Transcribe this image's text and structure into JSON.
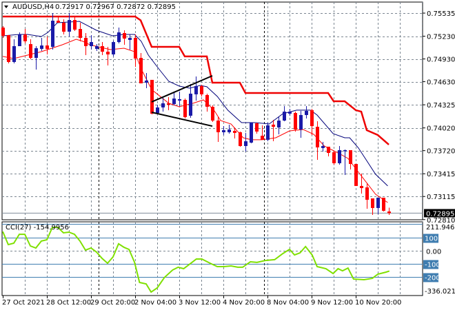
{
  "header": {
    "symbol": "AUDUSD,H4",
    "open": "0.72917",
    "high": "0.72967",
    "low": "0.72872",
    "close": "0.72895"
  },
  "colors": {
    "bull": "#1a1aa8",
    "bear": "#ff0000",
    "ma_blue": "#00007a",
    "envelope_red": "#ff0000",
    "stop_line": "#ee0000",
    "cci": "#7fe000",
    "level": "#3f7db0",
    "grid": "#7a8590"
  },
  "chart_data": [
    {
      "type": "candlestick",
      "title": "AUDUSD,H4",
      "ylim": [
        0.7276,
        0.7564
      ],
      "price_ticks": [
        "0.75535",
        "0.75230",
        "0.74930",
        "0.74630",
        "0.74325",
        "0.74020",
        "0.73720",
        "0.73415",
        "0.73115",
        "0.72810"
      ],
      "current_price": "0.72895",
      "x_tick_labels": [
        {
          "bar": 0,
          "label": "27 Oct 2021"
        },
        {
          "bar": 8,
          "label": "28 Oct 12:00"
        },
        {
          "bar": 16,
          "label": "29 Oct 20:00"
        },
        {
          "bar": 24,
          "label": "2 Nov 04:00"
        },
        {
          "bar": 32,
          "label": "3 Nov 12:00"
        },
        {
          "bar": 40,
          "label": "4 Nov 20:00"
        },
        {
          "bar": 48,
          "label": "8 Nov 04:00"
        },
        {
          "bar": 56,
          "label": "9 Nov 12:00"
        },
        {
          "bar": 64,
          "label": "10 Nov 20:00"
        }
      ],
      "separators": [
        17,
        47
      ],
      "candles_ohlc": [
        [
          0.75344,
          0.75363,
          0.75208,
          0.75235
        ],
        [
          0.75244,
          0.75244,
          0.74872,
          0.7489
        ],
        [
          0.7489,
          0.7519,
          0.74872,
          0.75099
        ],
        [
          0.75099,
          0.75281,
          0.75099,
          0.75253
        ],
        [
          0.75253,
          0.75326,
          0.75135,
          0.75163
        ],
        [
          0.75126,
          0.7519,
          0.74926,
          0.74944
        ],
        [
          0.74944,
          0.75099,
          0.7479,
          0.75072
        ],
        [
          0.75063,
          0.75208,
          0.75035,
          0.75108
        ],
        [
          0.75108,
          0.75226,
          0.7499,
          0.75063
        ],
        [
          0.7509,
          0.75535,
          0.75053,
          0.75435
        ],
        [
          0.75435,
          0.75481,
          0.75408,
          0.75408
        ],
        [
          0.75408,
          0.75453,
          0.75253,
          0.7529
        ],
        [
          0.7529,
          0.75535,
          0.75226,
          0.75444
        ],
        [
          0.75444,
          0.75499,
          0.75299,
          0.75317
        ],
        [
          0.75326,
          0.75408,
          0.75163,
          0.75208
        ],
        [
          0.75208,
          0.75272,
          0.74981,
          0.75099
        ],
        [
          0.75099,
          0.75244,
          0.75053,
          0.75153
        ],
        [
          0.75063,
          0.75126,
          0.75035,
          0.75099
        ],
        [
          0.75099,
          0.75153,
          0.74981,
          0.75026
        ],
        [
          0.75026,
          0.7509,
          0.74844,
          0.7499
        ],
        [
          0.7499,
          0.75172,
          0.74963,
          0.75153
        ],
        [
          0.75153,
          0.75344,
          0.75135,
          0.75281
        ],
        [
          0.75272,
          0.75308,
          0.75117,
          0.75199
        ],
        [
          0.75181,
          0.75253,
          0.75053,
          0.75208
        ],
        [
          0.75208,
          0.75253,
          0.74826,
          0.74935
        ],
        [
          0.74944,
          0.75008,
          0.74608,
          0.74608
        ],
        [
          0.74617,
          0.74744,
          0.74544,
          0.74645
        ],
        [
          0.74654,
          0.74654,
          0.74199,
          0.74208
        ],
        [
          0.74217,
          0.74326,
          0.74208,
          0.7429
        ],
        [
          0.7429,
          0.74417,
          0.74235,
          0.74345
        ],
        [
          0.74345,
          0.74426,
          0.74254,
          0.74326
        ],
        [
          0.74335,
          0.74499,
          0.74317,
          0.74408
        ],
        [
          0.74381,
          0.74499,
          0.74308,
          0.74399
        ],
        [
          0.7439,
          0.74408,
          0.74144,
          0.74163
        ],
        [
          0.74181,
          0.74599,
          0.74154,
          0.74472
        ],
        [
          0.74463,
          0.74699,
          0.74381,
          0.74572
        ],
        [
          0.74572,
          0.7459,
          0.74435,
          0.74463
        ],
        [
          0.74454,
          0.74472,
          0.74235,
          0.74299
        ],
        [
          0.74299,
          0.74317,
          0.74099,
          0.74117
        ],
        [
          0.74117,
          0.74163,
          0.73835,
          0.73963
        ],
        [
          0.73963,
          0.74044,
          0.73926,
          0.7399
        ],
        [
          0.73963,
          0.74063,
          0.73944,
          0.73999
        ],
        [
          0.73981,
          0.74026,
          0.73881,
          0.73954
        ],
        [
          0.73963,
          0.73972,
          0.73772,
          0.73781
        ],
        [
          0.73781,
          0.73954,
          0.73708,
          0.73844
        ],
        [
          0.73826,
          0.7409,
          0.73817,
          0.7409
        ],
        [
          0.74081,
          0.7409,
          0.73944,
          0.73972
        ],
        [
          0.73917,
          0.74054,
          0.73863,
          0.73863
        ],
        [
          0.73863,
          0.7409,
          0.73844,
          0.74054
        ],
        [
          0.74063,
          0.74126,
          0.73844,
          0.74035
        ],
        [
          0.74026,
          0.74163,
          0.73935,
          0.74117
        ],
        [
          0.74117,
          0.74308,
          0.74108,
          0.74235
        ],
        [
          0.74208,
          0.74272,
          0.74181,
          0.74235
        ],
        [
          0.74217,
          0.74235,
          0.73972,
          0.73999
        ],
        [
          0.73999,
          0.74245,
          0.7389,
          0.7419
        ],
        [
          0.7419,
          0.74308,
          0.74144,
          0.74245
        ],
        [
          0.74254,
          0.74272,
          0.73926,
          0.74044
        ],
        [
          0.74035,
          0.74108,
          0.73599,
          0.73763
        ],
        [
          0.73754,
          0.73835,
          0.73708,
          0.73781
        ],
        [
          0.73772,
          0.73772,
          0.73644,
          0.7369
        ],
        [
          0.73699,
          0.73717,
          0.73535,
          0.73554
        ],
        [
          0.73554,
          0.73781,
          0.73535,
          0.73726
        ],
        [
          0.73717,
          0.73735,
          0.73399,
          0.73726
        ],
        [
          0.73726,
          0.73726,
          0.73472,
          0.73544
        ],
        [
          0.73544,
          0.73544,
          0.73254,
          0.73254
        ],
        [
          0.73254,
          0.73417,
          0.73154,
          0.73226
        ],
        [
          0.73235,
          0.7329,
          0.72954,
          0.73072
        ],
        [
          0.7309,
          0.7309,
          0.72872,
          0.72963
        ],
        [
          0.72963,
          0.73099,
          0.72881,
          0.73099
        ],
        [
          0.73099,
          0.73099,
          0.72917,
          0.72926
        ],
        [
          0.72917,
          0.72967,
          0.72872,
          0.72895
        ]
      ],
      "overlays": {
        "stop_line": [
          [
            0,
            0.7549
          ],
          [
            24,
            0.7549
          ],
          [
            25,
            0.7544
          ],
          [
            27,
            0.7509
          ],
          [
            32,
            0.7509
          ],
          [
            33,
            0.74963
          ],
          [
            37,
            0.74963
          ],
          [
            38,
            0.74617
          ],
          [
            43,
            0.74617
          ],
          [
            44,
            0.74481
          ],
          [
            59,
            0.74481
          ],
          [
            60,
            0.74372
          ],
          [
            62,
            0.74372
          ],
          [
            64,
            0.74254
          ],
          [
            65,
            0.74235
          ],
          [
            66,
            0.7399
          ],
          [
            68,
            0.73926
          ],
          [
            70,
            0.738
          ]
        ],
        "ma_blue": [
          [
            0,
            0.75235
          ],
          [
            3,
            0.75253
          ],
          [
            4.5,
            0.75253
          ],
          [
            7,
            0.75226
          ],
          [
            8.2,
            0.75281
          ],
          [
            9.9,
            0.75408
          ],
          [
            13.9,
            0.75426
          ],
          [
            17,
            0.75308
          ],
          [
            19.9,
            0.75235
          ],
          [
            22,
            0.75253
          ],
          [
            23.9,
            0.75253
          ],
          [
            25.1,
            0.75163
          ],
          [
            26.4,
            0.74981
          ],
          [
            28.3,
            0.74799
          ],
          [
            30.1,
            0.74635
          ],
          [
            32,
            0.74572
          ],
          [
            33.9,
            0.74544
          ],
          [
            35.8,
            0.74581
          ],
          [
            37,
            0.74563
          ],
          [
            38.9,
            0.74435
          ],
          [
            40.8,
            0.74254
          ],
          [
            43.3,
            0.7409
          ],
          [
            45.8,
            0.7409
          ],
          [
            48.3,
            0.74072
          ],
          [
            50.8,
            0.74208
          ],
          [
            53.3,
            0.74254
          ],
          [
            55.8,
            0.74254
          ],
          [
            57,
            0.7419
          ],
          [
            59.9,
            0.73944
          ],
          [
            62,
            0.7389
          ],
          [
            62.9,
            0.7389
          ],
          [
            64.5,
            0.73754
          ],
          [
            67.6,
            0.73408
          ],
          [
            69.8,
            0.73254
          ]
        ],
        "envelope_red": [
          [
            0,
            0.74963
          ],
          [
            2,
            0.74935
          ],
          [
            4.5,
            0.74981
          ],
          [
            7,
            0.75026
          ],
          [
            8.9,
            0.75072
          ],
          [
            10.8,
            0.75117
          ],
          [
            13.3,
            0.7519
          ],
          [
            14.5,
            0.75163
          ],
          [
            15.8,
            0.75117
          ],
          [
            19.5,
            0.75053
          ],
          [
            22,
            0.75072
          ],
          [
            23.9,
            0.75026
          ],
          [
            25.1,
            0.74799
          ],
          [
            27,
            0.74526
          ],
          [
            30.1,
            0.74345
          ],
          [
            32,
            0.74299
          ],
          [
            34.5,
            0.74345
          ],
          [
            36.4,
            0.7439
          ],
          [
            38.3,
            0.74254
          ],
          [
            39.5,
            0.74117
          ],
          [
            41.4,
            0.74072
          ],
          [
            43.6,
            0.7389
          ],
          [
            45.1,
            0.73863
          ],
          [
            47,
            0.73863
          ],
          [
            49.5,
            0.7389
          ],
          [
            52,
            0.73981
          ],
          [
            54.5,
            0.73999
          ],
          [
            56.4,
            0.73935
          ],
          [
            58.3,
            0.73781
          ],
          [
            60.8,
            0.7369
          ],
          [
            62.6,
            0.73617
          ],
          [
            64.5,
            0.73435
          ],
          [
            67.6,
            0.73144
          ],
          [
            69.8,
            0.73035
          ]
        ]
      },
      "trendlines": [
        {
          "from": [
            27,
            0.74363
          ],
          "to": [
            38,
            0.74708
          ]
        },
        {
          "from": [
            27,
            0.74226
          ],
          "to": [
            38,
            0.74044
          ]
        }
      ]
    },
    {
      "type": "line",
      "title": "CCI(27)",
      "last_value": "-154.9956",
      "ylim": [
        -336.0213,
        211.9463
      ],
      "max_label": "211.9463",
      "min_label": "-336.0213",
      "levels": [
        {
          "value": 100,
          "label": "100",
          "boxed": true
        },
        {
          "value": 0,
          "label": "0.00",
          "boxed": false
        },
        {
          "value": -100,
          "label": "-100",
          "boxed": true
        },
        {
          "value": -200,
          "label": "-200",
          "boxed": true
        }
      ],
      "points": [
        [
          0,
          147
        ],
        [
          1,
          47
        ],
        [
          2,
          58
        ],
        [
          3,
          126
        ],
        [
          4,
          126
        ],
        [
          5,
          37
        ],
        [
          6,
          21
        ],
        [
          7,
          74
        ],
        [
          8,
          84
        ],
        [
          9,
          179
        ],
        [
          10,
          179
        ],
        [
          11,
          137
        ],
        [
          12,
          142
        ],
        [
          13,
          126
        ],
        [
          14,
          74
        ],
        [
          15,
          5
        ],
        [
          16,
          21
        ],
        [
          17,
          -10
        ],
        [
          18,
          -58
        ],
        [
          19,
          -95
        ],
        [
          20,
          -47
        ],
        [
          21,
          53
        ],
        [
          22,
          26
        ],
        [
          22.9,
          10
        ],
        [
          23.9,
          -89
        ],
        [
          24.8,
          -242
        ],
        [
          26,
          -253
        ],
        [
          26.9,
          -316
        ],
        [
          28,
          -284
        ],
        [
          29.3,
          -205
        ],
        [
          30.8,
          -147
        ],
        [
          31.8,
          -126
        ],
        [
          32.8,
          -137
        ],
        [
          34.3,
          -89
        ],
        [
          35.1,
          -63
        ],
        [
          36.1,
          -63
        ],
        [
          37.6,
          -95
        ],
        [
          38.9,
          -121
        ],
        [
          40.1,
          -121
        ],
        [
          41.4,
          -116
        ],
        [
          42.6,
          -126
        ],
        [
          43.5,
          -126
        ],
        [
          44.9,
          -84
        ],
        [
          46.1,
          -89
        ],
        [
          47.6,
          -74
        ],
        [
          49.3,
          -68
        ],
        [
          50.8,
          -21
        ],
        [
          52,
          11
        ],
        [
          52.9,
          -32
        ],
        [
          53.9,
          -16
        ],
        [
          54.9,
          32
        ],
        [
          56.1,
          -32
        ],
        [
          57,
          -121
        ],
        [
          58.6,
          -137
        ],
        [
          59.9,
          -174
        ],
        [
          60.8,
          -137
        ],
        [
          61.6,
          -153
        ],
        [
          62.6,
          -132
        ],
        [
          63.6,
          -216
        ],
        [
          65.5,
          -221
        ],
        [
          67,
          -211
        ],
        [
          68,
          -179
        ],
        [
          69.5,
          -163
        ],
        [
          70.1,
          -155
        ]
      ]
    }
  ]
}
